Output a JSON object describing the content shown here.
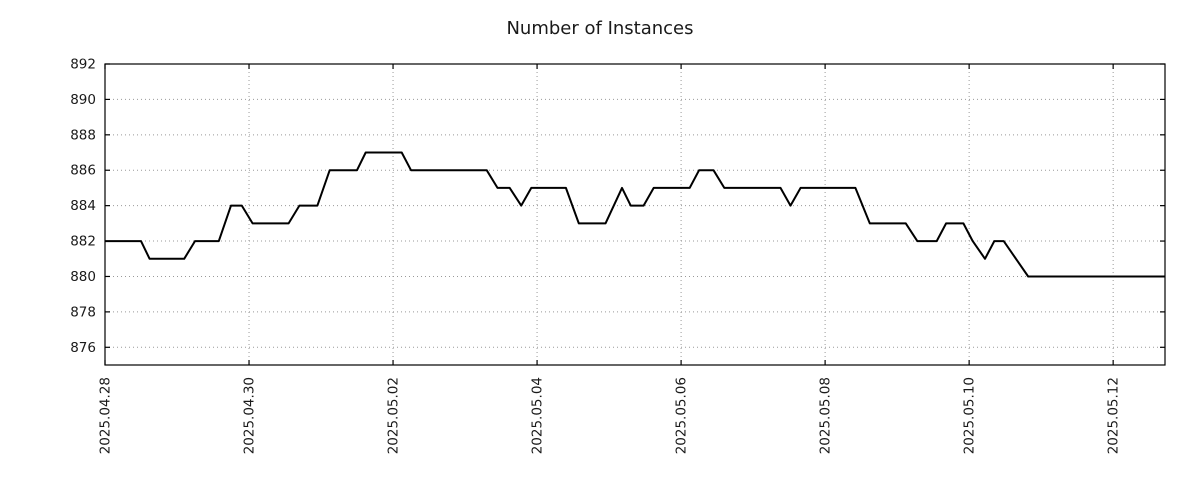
{
  "chart_data": {
    "type": "line",
    "title": "Number of Instances",
    "xlabel": "",
    "ylabel": "",
    "grid": true,
    "legend": "none",
    "line_color": "#000000",
    "grid_color": "#999999",
    "axis_color": "#000000",
    "text_color": "#1a1a1a",
    "x_tick_labels": [
      "2025.04.28",
      "2025.04.30",
      "2025.05.02",
      "2025.05.04",
      "2025.05.06",
      "2025.05.08",
      "2025.05.10",
      "2025.05.12"
    ],
    "x_tick_positions_days": [
      0,
      2,
      4,
      6,
      8,
      10,
      12,
      14
    ],
    "xlim_days": [
      0,
      14.72
    ],
    "y_ticks": [
      876,
      878,
      880,
      882,
      884,
      886,
      888,
      890,
      892
    ],
    "ylim": [
      875,
      892
    ],
    "series": [
      {
        "name": "instances",
        "points_day_value": [
          [
            0.0,
            882
          ],
          [
            0.5,
            882
          ],
          [
            0.62,
            881
          ],
          [
            1.1,
            881
          ],
          [
            1.25,
            882
          ],
          [
            1.58,
            882
          ],
          [
            1.75,
            884
          ],
          [
            1.9,
            884
          ],
          [
            2.05,
            883
          ],
          [
            2.55,
            883
          ],
          [
            2.7,
            884
          ],
          [
            2.95,
            884
          ],
          [
            3.12,
            886
          ],
          [
            3.5,
            886
          ],
          [
            3.62,
            887
          ],
          [
            4.12,
            887
          ],
          [
            4.25,
            886
          ],
          [
            5.3,
            886
          ],
          [
            5.45,
            885
          ],
          [
            5.62,
            885
          ],
          [
            5.78,
            884
          ],
          [
            5.92,
            885
          ],
          [
            6.4,
            885
          ],
          [
            6.58,
            883
          ],
          [
            6.95,
            883
          ],
          [
            7.18,
            885
          ],
          [
            7.3,
            884
          ],
          [
            7.48,
            884
          ],
          [
            7.62,
            885
          ],
          [
            8.12,
            885
          ],
          [
            8.25,
            886
          ],
          [
            8.45,
            886
          ],
          [
            8.6,
            885
          ],
          [
            9.38,
            885
          ],
          [
            9.52,
            884
          ],
          [
            9.66,
            885
          ],
          [
            10.42,
            885
          ],
          [
            10.62,
            883
          ],
          [
            11.12,
            883
          ],
          [
            11.28,
            882
          ],
          [
            11.55,
            882
          ],
          [
            11.68,
            883
          ],
          [
            11.92,
            883
          ],
          [
            12.05,
            882
          ],
          [
            12.22,
            881
          ],
          [
            12.35,
            882
          ],
          [
            12.48,
            882
          ],
          [
            12.82,
            880
          ],
          [
            14.72,
            880
          ]
        ]
      }
    ]
  }
}
